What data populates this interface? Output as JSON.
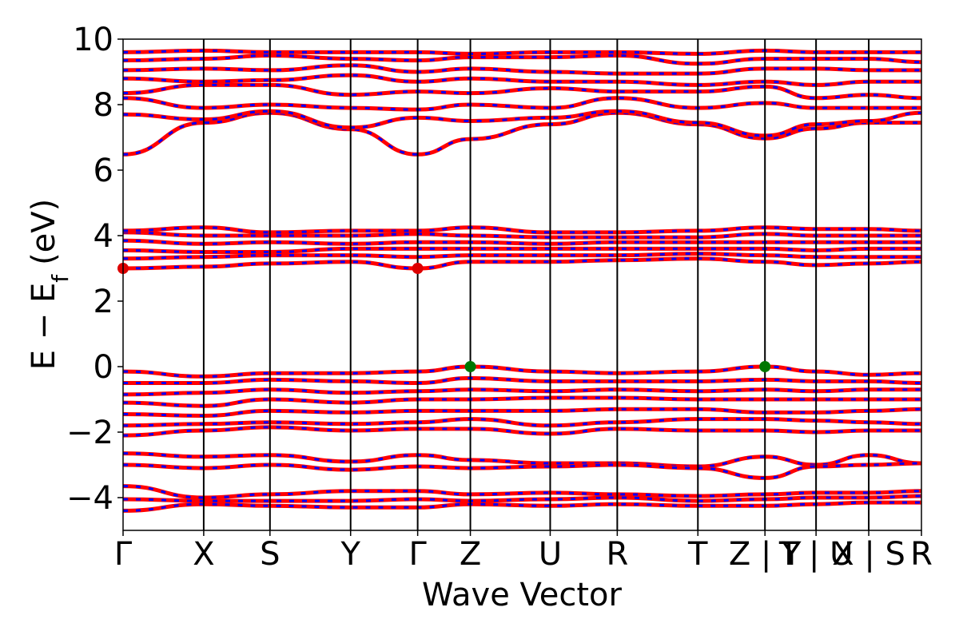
{
  "chart_data": {
    "type": "line",
    "xlabel": "Wave Vector",
    "ylabel": "E − E",
    "ylabel_subscript": "f",
    "ylabel_units": "(eV)",
    "ylim": [
      -5,
      10
    ],
    "y_ticks": [
      {
        "value": 10,
        "label": "10"
      },
      {
        "value": 8,
        "label": "8"
      },
      {
        "value": 6,
        "label": "6"
      },
      {
        "value": 4,
        "label": "4"
      },
      {
        "value": 2,
        "label": "2"
      },
      {
        "value": 0,
        "label": "0"
      },
      {
        "value": -2,
        "label": "−2"
      },
      {
        "value": -4,
        "label": "−4"
      }
    ],
    "kpath_labels": [
      "Γ",
      "X",
      "S",
      "Y",
      "Γ",
      "Z",
      "U",
      "R",
      "T",
      "Z | Y",
      "T | U",
      "X | S",
      "R"
    ],
    "kpath_positions": [
      0,
      0.101,
      0.184,
      0.285,
      0.369,
      0.435,
      0.535,
      0.619,
      0.72,
      0.804,
      0.868,
      0.934,
      1.0
    ],
    "colors": {
      "spin_up": "#ff0000",
      "spin_down": "#0000ff",
      "vbm": "#007700",
      "cbm": "#dd0000"
    },
    "band_extrema": {
      "cbm": [
        {
          "x": 0.0,
          "y": 3.0
        },
        {
          "x": 0.369,
          "y": 3.0
        }
      ],
      "vbm": [
        {
          "x": 0.435,
          "y": 0.0
        },
        {
          "x": 0.804,
          "y": 0.0
        }
      ]
    },
    "series": [
      {
        "values": [
          6.48,
          7.45,
          7.75,
          7.25,
          6.48,
          6.95,
          7.4,
          7.75,
          7.4,
          6.97,
          7.27,
          7.45,
          7.45
        ]
      },
      {
        "values": [
          7.7,
          7.55,
          7.8,
          7.3,
          7.6,
          7.5,
          7.6,
          7.8,
          7.45,
          7.05,
          7.4,
          7.5,
          7.75
        ]
      },
      {
        "values": [
          8.2,
          7.9,
          8.0,
          7.9,
          7.85,
          8.0,
          7.9,
          8.2,
          7.9,
          8.05,
          7.9,
          7.9,
          7.9
        ]
      },
      {
        "values": [
          8.35,
          8.6,
          8.6,
          8.3,
          8.4,
          8.35,
          8.5,
          8.4,
          8.4,
          8.55,
          8.2,
          8.3,
          8.2
        ]
      },
      {
        "values": [
          8.8,
          8.7,
          8.75,
          8.9,
          8.7,
          8.8,
          8.7,
          8.7,
          8.6,
          8.7,
          8.6,
          8.7,
          8.7
        ]
      },
      {
        "values": [
          9.05,
          9.1,
          9.05,
          9.2,
          9.0,
          9.1,
          9.0,
          8.95,
          8.95,
          9.1,
          9.1,
          9.05,
          9.05
        ]
      },
      {
        "values": [
          9.35,
          9.4,
          9.5,
          9.4,
          9.35,
          9.45,
          9.45,
          9.5,
          9.25,
          9.4,
          9.4,
          9.4,
          9.3
        ]
      },
      {
        "values": [
          9.6,
          9.65,
          9.6,
          9.6,
          9.6,
          9.55,
          9.6,
          9.6,
          9.55,
          9.65,
          9.6,
          9.6,
          9.6
        ]
      },
      {
        "values": [
          3.0,
          3.05,
          3.15,
          3.2,
          3.0,
          3.2,
          3.2,
          3.25,
          3.3,
          3.2,
          3.1,
          3.15,
          3.2
        ]
      },
      {
        "values": [
          3.3,
          3.35,
          3.4,
          3.4,
          3.35,
          3.4,
          3.4,
          3.4,
          3.45,
          3.4,
          3.35,
          3.35,
          3.35
        ]
      },
      {
        "values": [
          3.55,
          3.5,
          3.5,
          3.6,
          3.6,
          3.6,
          3.6,
          3.6,
          3.6,
          3.6,
          3.55,
          3.6,
          3.6
        ]
      },
      {
        "values": [
          3.85,
          3.75,
          3.8,
          3.75,
          3.8,
          3.8,
          3.75,
          3.8,
          3.8,
          3.8,
          3.8,
          3.8,
          3.8
        ]
      },
      {
        "values": [
          4.1,
          4.0,
          4.0,
          4.0,
          4.05,
          4.0,
          3.95,
          3.95,
          3.95,
          4.05,
          4.0,
          4.0,
          4.0
        ]
      },
      {
        "values": [
          4.15,
          4.25,
          4.1,
          4.15,
          4.15,
          4.25,
          4.1,
          4.1,
          4.15,
          4.25,
          4.2,
          4.2,
          4.15
        ]
      },
      {
        "values": [
          -0.15,
          -0.3,
          -0.2,
          -0.2,
          -0.15,
          0.0,
          -0.15,
          -0.2,
          -0.15,
          0.0,
          -0.15,
          -0.25,
          -0.2
        ]
      },
      {
        "values": [
          -0.5,
          -0.5,
          -0.4,
          -0.45,
          -0.5,
          -0.35,
          -0.45,
          -0.45,
          -0.45,
          -0.4,
          -0.45,
          -0.45,
          -0.5
        ]
      },
      {
        "values": [
          -0.85,
          -0.8,
          -0.7,
          -0.8,
          -0.75,
          -0.7,
          -0.75,
          -0.7,
          -0.75,
          -0.7,
          -0.75,
          -0.7,
          -0.7
        ]
      },
      {
        "values": [
          -1.1,
          -1.2,
          -1.0,
          -1.1,
          -1.0,
          -1.0,
          -0.95,
          -0.95,
          -1.0,
          -1.0,
          -1.0,
          -1.0,
          -1.0
        ]
      },
      {
        "values": [
          -1.45,
          -1.5,
          -1.35,
          -1.4,
          -1.35,
          -1.35,
          -1.35,
          -1.3,
          -1.3,
          -1.4,
          -1.4,
          -1.35,
          -1.3
        ]
      },
      {
        "values": [
          -1.8,
          -1.75,
          -1.7,
          -1.75,
          -1.7,
          -1.6,
          -1.8,
          -1.7,
          -1.6,
          -1.6,
          -1.65,
          -1.7,
          -1.75
        ]
      },
      {
        "values": [
          -2.1,
          -1.95,
          -1.85,
          -1.95,
          -1.9,
          -1.9,
          -2.05,
          -1.9,
          -1.95,
          -1.95,
          -2.0,
          -1.95,
          -1.95
        ]
      },
      {
        "values": [
          -2.65,
          -2.75,
          -2.7,
          -2.9,
          -2.7,
          -2.85,
          -2.95,
          -2.95,
          -3.05,
          -2.75,
          -3.0,
          -2.7,
          -2.95
        ]
      },
      {
        "values": [
          -3.0,
          -3.1,
          -3.0,
          -3.15,
          -3.05,
          -3.1,
          -3.05,
          -3.0,
          -3.1,
          -3.4,
          -3.05,
          -3.0,
          -2.95
        ]
      },
      {
        "values": [
          -3.65,
          -4.0,
          -3.9,
          -3.8,
          -3.8,
          -3.9,
          -3.85,
          -3.9,
          -3.95,
          -3.9,
          -3.85,
          -3.85,
          -3.8
        ]
      },
      {
        "values": [
          -4.05,
          -4.1,
          -4.1,
          -4.1,
          -4.05,
          -4.1,
          -4.05,
          -4.0,
          -4.1,
          -4.05,
          -4.0,
          -4.0,
          -3.95
        ]
      },
      {
        "values": [
          -4.4,
          -4.2,
          -4.25,
          -4.3,
          -4.3,
          -4.2,
          -4.25,
          -4.2,
          -4.25,
          -4.25,
          -4.2,
          -4.15,
          -4.15
        ]
      }
    ]
  }
}
